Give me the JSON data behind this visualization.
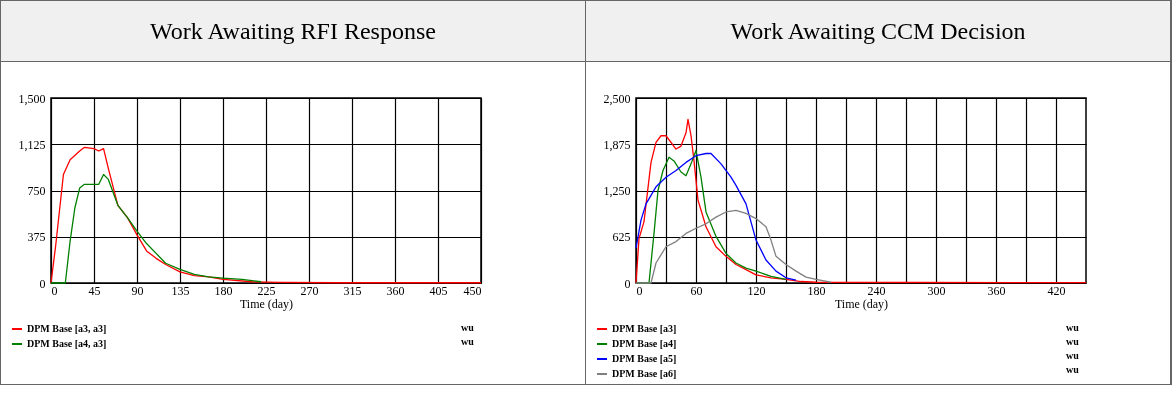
{
  "chart_data": [
    {
      "type": "line",
      "title": "Work Awaiting RFI Response",
      "xlabel": "Time (day)",
      "xlim": [
        0,
        450
      ],
      "xticks": [
        0,
        45,
        90,
        135,
        180,
        225,
        270,
        315,
        360,
        405,
        450
      ],
      "ylim": [
        0,
        1500
      ],
      "yticks": [
        0,
        375,
        750,
        {
          "value": 1125,
          "label": "1,125"
        },
        {
          "value": 1500,
          "label": "1,500"
        }
      ],
      "grid": true,
      "legend": "bottom",
      "annotations": [
        "wu",
        "wu"
      ],
      "x": [
        0,
        5,
        13,
        20,
        30,
        35,
        45,
        50,
        55,
        60,
        70,
        80,
        90,
        100,
        110,
        120,
        135,
        150,
        165,
        180,
        210,
        240,
        300,
        450
      ],
      "series": [
        {
          "name": "DPM Base [a3, a3]",
          "color": "#ff0000",
          "values": [
            0,
            310,
            880,
            1000,
            1070,
            1100,
            1090,
            1070,
            1090,
            930,
            630,
            530,
            390,
            260,
            200,
            150,
            90,
            60,
            50,
            30,
            10,
            5,
            2,
            2
          ]
        },
        {
          "name": "DPM Base [a4, a3]",
          "color": "#008000",
          "x": [
            0,
            15,
            20,
            25,
            30,
            35,
            45,
            50,
            55,
            60,
            70,
            80,
            90,
            100,
            110,
            120,
            135,
            150,
            165,
            180,
            200,
            220
          ],
          "values": [
            0,
            0,
            340,
            610,
            770,
            800,
            800,
            800,
            880,
            840,
            630,
            530,
            420,
            320,
            240,
            160,
            110,
            70,
            50,
            40,
            30,
            10
          ]
        }
      ]
    },
    {
      "type": "line",
      "title": "Work Awaiting CCM Decision",
      "xlabel": "Time (day)",
      "xlim": [
        0,
        450
      ],
      "xticks": [
        0,
        {
          "value": 30,
          "label": null
        },
        60,
        {
          "value": 90,
          "label": null
        },
        120,
        {
          "value": 150,
          "label": null
        },
        180,
        {
          "value": 210,
          "label": null
        },
        240,
        {
          "value": 270,
          "label": null
        },
        300,
        {
          "value": 330,
          "label": null
        },
        360,
        {
          "value": 390,
          "label": null
        },
        420
      ],
      "ylim": [
        0,
        2500
      ],
      "yticks": [
        0,
        625,
        {
          "value": 1250,
          "label": "1,250"
        },
        {
          "value": 1875,
          "label": "1,875"
        },
        {
          "value": 2500,
          "label": "2,500"
        }
      ],
      "grid": true,
      "legend": "bottom",
      "annotations": [
        "wu",
        "wu",
        "wu",
        "wu"
      ],
      "series": [
        {
          "name": "DPM Base [a3]",
          "color": "#ff0000",
          "x": [
            0,
            3,
            8,
            15,
            20,
            25,
            30,
            40,
            45,
            50,
            52,
            55,
            58,
            62,
            70,
            80,
            90,
            100,
            110,
            120,
            135,
            150,
            165,
            180,
            450
          ],
          "values": [
            0,
            600,
            830,
            1630,
            1900,
            1990,
            1990,
            1810,
            1850,
            2030,
            2210,
            1990,
            1650,
            1120,
            760,
            490,
            360,
            250,
            180,
            110,
            70,
            50,
            20,
            10,
            5
          ]
        },
        {
          "name": "DPM Base [a4]",
          "color": "#008000",
          "x": [
            0,
            13,
            18,
            22,
            27,
            33,
            38,
            45,
            50,
            55,
            60,
            65,
            70,
            80,
            90,
            100,
            110,
            120,
            135,
            150
          ],
          "values": [
            0,
            0,
            670,
            1250,
            1520,
            1700,
            1650,
            1500,
            1450,
            1610,
            1790,
            1430,
            960,
            630,
            400,
            270,
            200,
            160,
            90,
            50
          ]
        },
        {
          "name": "DPM Base [a5]",
          "color": "#0000ff",
          "x": [
            0,
            5,
            10,
            20,
            30,
            40,
            50,
            60,
            70,
            75,
            85,
            95,
            100,
            110,
            120,
            130,
            140,
            150,
            160
          ],
          "values": [
            470,
            850,
            1070,
            1300,
            1430,
            1520,
            1630,
            1720,
            1750,
            1750,
            1610,
            1430,
            1320,
            1070,
            580,
            310,
            160,
            70,
            40
          ]
        },
        {
          "name": "DPM Base [a6]",
          "color": "#808080",
          "x": [
            0,
            15,
            20,
            30,
            40,
            50,
            60,
            70,
            80,
            90,
            100,
            110,
            120,
            130,
            135,
            140,
            150,
            160,
            170,
            180,
            195
          ],
          "values": [
            0,
            0,
            270,
            490,
            560,
            670,
            740,
            800,
            890,
            960,
            980,
            940,
            870,
            760,
            580,
            360,
            250,
            160,
            80,
            50,
            10
          ]
        }
      ]
    }
  ]
}
